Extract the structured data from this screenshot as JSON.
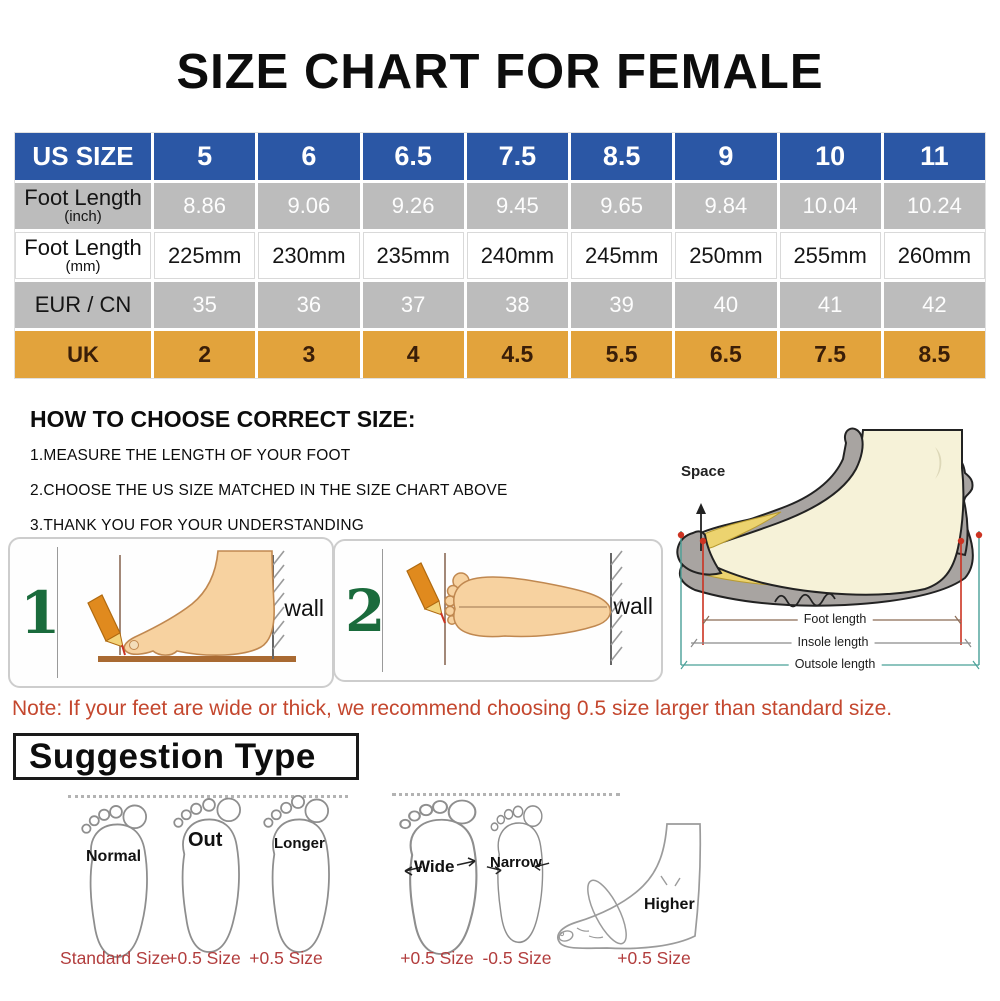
{
  "title": "SIZE CHART FOR FEMALE",
  "size_table": {
    "rows": [
      {
        "label": "US SIZE",
        "sublabel": "",
        "theme": "blue",
        "values": [
          "5",
          "6",
          "6.5",
          "7.5",
          "8.5",
          "9",
          "10",
          "11"
        ]
      },
      {
        "label": "Foot Length",
        "sublabel": "(inch)",
        "theme": "gray",
        "values": [
          "8.86",
          "9.06",
          "9.26",
          "9.45",
          "9.65",
          "9.84",
          "10.04",
          "10.24"
        ]
      },
      {
        "label": "Foot Length",
        "sublabel": "(mm)",
        "theme": "white",
        "values": [
          "225mm",
          "230mm",
          "235mm",
          "240mm",
          "245mm",
          "250mm",
          "255mm",
          "260mm"
        ]
      },
      {
        "label": "EUR / CN",
        "sublabel": "",
        "theme": "gray",
        "values": [
          "35",
          "36",
          "37",
          "38",
          "39",
          "40",
          "41",
          "42"
        ]
      },
      {
        "label": "UK",
        "sublabel": "",
        "theme": "orange",
        "values": [
          "2",
          "3",
          "4",
          "4.5",
          "5.5",
          "6.5",
          "7.5",
          "8.5"
        ]
      }
    ]
  },
  "how_to": {
    "heading": "HOW TO CHOOSE CORRECT SIZE:",
    "steps": [
      "1.MEASURE THE LENGTH OF YOUR FOOT",
      "2.CHOOSE THE US SIZE MATCHED IN THE SIZE CHART ABOVE",
      "3.THANK YOU FOR YOUR UNDERSTANDING"
    ]
  },
  "measure_steps": {
    "step1_number": "1",
    "step2_number": "2",
    "wall_label": "wall"
  },
  "shoe_diagram": {
    "space_label": "Space",
    "foot_length_label": "Foot length",
    "insole_length_label": "Insole length",
    "outsole_length_label": "Outsole length"
  },
  "note": "Note: If your feet are wide or thick, we recommend choosing 0.5 size larger than standard size.",
  "suggestion": {
    "heading": "Suggestion Type",
    "feet": [
      {
        "label": "Normal",
        "size": "Standard Size"
      },
      {
        "label": "Out",
        "size": "+0.5 Size"
      },
      {
        "label": "Longer",
        "size": "+0.5 Size"
      },
      {
        "label": "Wide",
        "size": "+0.5 Size"
      },
      {
        "label": "Narrow",
        "size": "-0.5 Size"
      },
      {
        "label": "Higher",
        "size": "+0.5 Size"
      }
    ]
  },
  "colors": {
    "header_blue": "#2b57a5",
    "row_gray": "#bcbcbc",
    "row_orange": "#e2a33c",
    "note_red": "#c4472e",
    "size_label_red": "#b23d3d",
    "step_number_green": "#1a6b3c"
  }
}
